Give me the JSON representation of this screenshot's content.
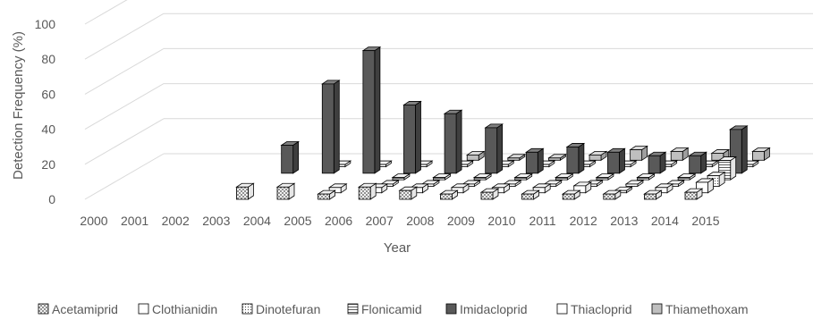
{
  "chart_data": {
    "type": "bar",
    "subtype": "3d-grouped-bar",
    "xlabel": "Year",
    "ylabel": "Detection Frequency (%)",
    "ylim": [
      0,
      100
    ],
    "yticks": [
      0,
      20,
      40,
      60,
      80,
      100
    ],
    "categories": [
      "2000",
      "2001",
      "2002",
      "2003",
      "2004",
      "2005",
      "2006",
      "2007",
      "2008",
      "2009",
      "2010",
      "2011",
      "2012",
      "2013",
      "2014",
      "2015"
    ],
    "legend_position": "bottom",
    "grid": true,
    "series": [
      {
        "name": "Acetamiprid",
        "pattern": "cross",
        "values": [
          null,
          null,
          null,
          null,
          7,
          7,
          3,
          7,
          5,
          3,
          4,
          3,
          3,
          3,
          3,
          4
        ]
      },
      {
        "name": "Clothianidin",
        "pattern": "white",
        "values": [
          null,
          null,
          null,
          null,
          null,
          null,
          3,
          3,
          3,
          3,
          3,
          3,
          4,
          1,
          3,
          6
        ]
      },
      {
        "name": "Dinotefuran",
        "pattern": "dots",
        "values": [
          null,
          null,
          null,
          null,
          null,
          null,
          null,
          1,
          1,
          1,
          1,
          1,
          1,
          1,
          1,
          6
        ]
      },
      {
        "name": "Flonicamid",
        "pattern": "hstripes",
        "values": [
          null,
          null,
          null,
          null,
          null,
          null,
          null,
          1,
          1,
          1,
          1,
          1,
          1,
          1,
          1,
          11
        ]
      },
      {
        "name": "Imidacloprid",
        "pattern": "dark",
        "values": [
          null,
          null,
          null,
          null,
          16,
          51,
          70,
          39,
          34,
          26,
          12,
          15,
          12,
          10,
          10,
          25
        ]
      },
      {
        "name": "Thiacloprid",
        "pattern": "white",
        "values": [
          null,
          null,
          null,
          null,
          null,
          1,
          1,
          1,
          1,
          1,
          1,
          1,
          1,
          1,
          1,
          1
        ]
      },
      {
        "name": "Thiamethoxam",
        "pattern": "light",
        "values": [
          null,
          null,
          null,
          null,
          null,
          null,
          null,
          null,
          3,
          1,
          1,
          3,
          6,
          5,
          4,
          5
        ]
      }
    ]
  },
  "colors": {
    "dark": "#595959",
    "light": "#bfbfbf",
    "white": "#ffffff",
    "outline": "#000000",
    "grid": "#d9d9d9",
    "text": "#595959"
  }
}
